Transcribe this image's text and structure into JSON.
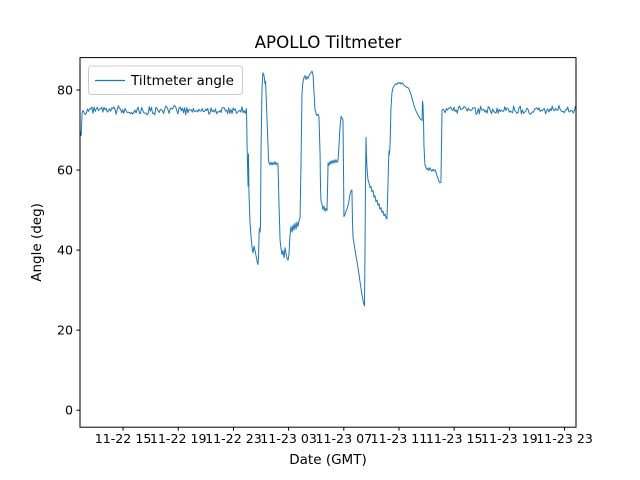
{
  "figure_background": "#ffffff",
  "chart_data": {
    "type": "line",
    "title": "APOLLO Tiltmeter",
    "xlabel": "Date (GMT)",
    "ylabel": "Angle (deg)",
    "line_color": "#1f77b4",
    "axes_edge_color": "#000000",
    "legend": {
      "position": "upper left",
      "edge_color": "#cccccc"
    },
    "x_unit": "hours since 11-22 15:00 GMT",
    "xlim_hours": [
      -3.12,
      32.83
    ],
    "ylim": [
      -4.25,
      88.1
    ],
    "xticks": {
      "hours": [
        0,
        4,
        8,
        12,
        16,
        20,
        24,
        28,
        32
      ],
      "labels": [
        "11-22 15",
        "11-22 19",
        "11-22 23",
        "11-23 03",
        "11-23 07",
        "11-23 11",
        "11-23 15",
        "11-23 19",
        "11-23 23"
      ]
    },
    "yticks": {
      "values": [
        0,
        20,
        40,
        60,
        80
      ],
      "labels": [
        "0",
        "20",
        "40",
        "60",
        "80"
      ]
    },
    "grid": false,
    "series": [
      {
        "name": "Tiltmeter angle",
        "color": "#1f77b4",
        "waypoints": [
          [
            -3.08,
            69.5
          ],
          [
            -3.04,
            68.6
          ],
          [
            -3.01,
            70.5
          ],
          [
            -2.97,
            74.2
          ],
          [
            8.95,
            74.8
          ],
          [
            8.99,
            66.0
          ],
          [
            9.06,
            56.0
          ],
          [
            9.09,
            64.0
          ],
          [
            9.13,
            54.0
          ],
          [
            9.2,
            47.0
          ],
          [
            9.28,
            43.2
          ],
          [
            9.35,
            40.6
          ],
          [
            9.42,
            39.3
          ],
          [
            9.49,
            41.0
          ],
          [
            9.57,
            39.8
          ],
          [
            9.64,
            38.6
          ],
          [
            9.71,
            37.2
          ],
          [
            9.78,
            36.4
          ],
          [
            9.82,
            38.0
          ],
          [
            9.86,
            44.0
          ],
          [
            9.89,
            45.5
          ],
          [
            9.93,
            44.5
          ],
          [
            9.96,
            46.0
          ],
          [
            10.0,
            65.0
          ],
          [
            10.07,
            80.0
          ],
          [
            10.11,
            83.0
          ],
          [
            10.14,
            84.3
          ],
          [
            10.22,
            83.6
          ],
          [
            10.29,
            81.5
          ],
          [
            10.33,
            82.2
          ],
          [
            10.36,
            79.5
          ],
          [
            10.43,
            73.0
          ],
          [
            10.51,
            66.0
          ],
          [
            10.54,
            62.5
          ],
          [
            10.58,
            61.8
          ],
          [
            10.65,
            61.3
          ],
          [
            10.72,
            62.0
          ],
          [
            10.8,
            61.2
          ],
          [
            10.87,
            61.9
          ],
          [
            10.94,
            61.4
          ],
          [
            11.01,
            62.1
          ],
          [
            11.09,
            61.3
          ],
          [
            11.16,
            61.8
          ],
          [
            11.23,
            61.5
          ],
          [
            11.3,
            52.0
          ],
          [
            11.38,
            42.5
          ],
          [
            11.45,
            40.3
          ],
          [
            11.52,
            38.9
          ],
          [
            11.59,
            39.9
          ],
          [
            11.67,
            38.1
          ],
          [
            11.74,
            40.6
          ],
          [
            11.81,
            39.3
          ],
          [
            11.88,
            37.9
          ],
          [
            11.96,
            37.5
          ],
          [
            12.03,
            39.0
          ],
          [
            12.1,
            43.6
          ],
          [
            12.17,
            45.9
          ],
          [
            12.25,
            44.5
          ],
          [
            12.32,
            46.3
          ],
          [
            12.39,
            45.0
          ],
          [
            12.46,
            46.7
          ],
          [
            12.54,
            45.3
          ],
          [
            12.61,
            47.0
          ],
          [
            12.68,
            45.9
          ],
          [
            12.75,
            47.3
          ],
          [
            12.83,
            48.1
          ],
          [
            12.9,
            62.0
          ],
          [
            12.97,
            79.2
          ],
          [
            13.04,
            82.0
          ],
          [
            13.12,
            83.2
          ],
          [
            13.19,
            83.6
          ],
          [
            13.26,
            82.6
          ],
          [
            13.33,
            83.3
          ],
          [
            13.41,
            82.9
          ],
          [
            13.48,
            83.6
          ],
          [
            13.55,
            84.0
          ],
          [
            13.62,
            84.3
          ],
          [
            13.7,
            84.7
          ],
          [
            13.77,
            83.8
          ],
          [
            13.84,
            79.5
          ],
          [
            13.91,
            75.2
          ],
          [
            13.99,
            74.1
          ],
          [
            14.06,
            73.6
          ],
          [
            14.13,
            74.0
          ],
          [
            14.2,
            73.4
          ],
          [
            14.28,
            64.0
          ],
          [
            14.31,
            56.0
          ],
          [
            14.35,
            52.2
          ],
          [
            14.42,
            51.4
          ],
          [
            14.49,
            50.1
          ],
          [
            14.57,
            51.0
          ],
          [
            14.64,
            49.7
          ],
          [
            14.71,
            50.4
          ],
          [
            14.78,
            49.9
          ],
          [
            14.82,
            55.0
          ],
          [
            14.86,
            61.8
          ],
          [
            14.93,
            61.2
          ],
          [
            15.0,
            62.2
          ],
          [
            15.07,
            61.5
          ],
          [
            15.14,
            62.4
          ],
          [
            15.22,
            61.7
          ],
          [
            15.29,
            62.5
          ],
          [
            15.36,
            61.8
          ],
          [
            15.43,
            62.6
          ],
          [
            15.51,
            61.9
          ],
          [
            15.58,
            62.3
          ],
          [
            15.65,
            66.0
          ],
          [
            15.72,
            70.5
          ],
          [
            15.8,
            73.4
          ],
          [
            15.87,
            73.0
          ],
          [
            15.94,
            72.5
          ],
          [
            15.98,
            60.0
          ],
          [
            16.01,
            48.4
          ],
          [
            16.09,
            48.9
          ],
          [
            16.16,
            49.7
          ],
          [
            16.23,
            50.3
          ],
          [
            16.3,
            51.1
          ],
          [
            16.38,
            52.4
          ],
          [
            16.45,
            53.9
          ],
          [
            16.52,
            54.8
          ],
          [
            16.59,
            55.0
          ],
          [
            16.63,
            47.0
          ],
          [
            16.67,
            43.2
          ],
          [
            16.74,
            41.6
          ],
          [
            16.81,
            40.1
          ],
          [
            16.88,
            38.6
          ],
          [
            16.96,
            37.1
          ],
          [
            17.03,
            35.6
          ],
          [
            17.1,
            34.0
          ],
          [
            17.17,
            32.2
          ],
          [
            17.25,
            30.4
          ],
          [
            17.32,
            28.8
          ],
          [
            17.39,
            27.4
          ],
          [
            17.46,
            26.4
          ],
          [
            17.5,
            26.1
          ],
          [
            17.54,
            41.0
          ],
          [
            17.57,
            57.0
          ],
          [
            17.61,
            68.2
          ],
          [
            17.64,
            64.0
          ],
          [
            17.68,
            60.5
          ],
          [
            17.75,
            57.6
          ],
          [
            17.83,
            56.8
          ],
          [
            17.9,
            55.6
          ],
          [
            17.97,
            55.9
          ],
          [
            18.04,
            54.6
          ],
          [
            18.12,
            54.9
          ],
          [
            18.19,
            53.2
          ],
          [
            18.26,
            53.6
          ],
          [
            18.33,
            52.1
          ],
          [
            18.41,
            52.5
          ],
          [
            18.48,
            51.2
          ],
          [
            18.55,
            51.6
          ],
          [
            18.62,
            50.2
          ],
          [
            18.7,
            50.6
          ],
          [
            18.77,
            49.4
          ],
          [
            18.84,
            49.8
          ],
          [
            18.91,
            48.6
          ],
          [
            18.99,
            49.0
          ],
          [
            19.06,
            48.1
          ],
          [
            19.13,
            47.8
          ],
          [
            19.2,
            56.0
          ],
          [
            19.24,
            62.0
          ],
          [
            19.28,
            64.8
          ],
          [
            19.31,
            63.9
          ],
          [
            19.35,
            66.0
          ],
          [
            19.42,
            75.5
          ],
          [
            19.49,
            79.3
          ],
          [
            19.57,
            80.6
          ],
          [
            19.64,
            81.0
          ],
          [
            19.71,
            81.3
          ],
          [
            19.78,
            81.6
          ],
          [
            19.86,
            81.4
          ],
          [
            19.93,
            81.8
          ],
          [
            20.0,
            81.7
          ],
          [
            20.07,
            81.9
          ],
          [
            20.14,
            81.5
          ],
          [
            20.22,
            81.8
          ],
          [
            20.29,
            81.6
          ],
          [
            20.36,
            81.2
          ],
          [
            20.43,
            81.0
          ],
          [
            20.51,
            80.8
          ],
          [
            20.58,
            80.6
          ],
          [
            20.65,
            80.6
          ],
          [
            20.72,
            80.3
          ],
          [
            20.8,
            79.6
          ],
          [
            20.87,
            78.9
          ],
          [
            20.94,
            78.0
          ],
          [
            21.01,
            77.1
          ],
          [
            21.09,
            76.2
          ],
          [
            21.16,
            75.4
          ],
          [
            21.23,
            74.8
          ],
          [
            21.3,
            74.3
          ],
          [
            21.38,
            73.8
          ],
          [
            21.45,
            73.3
          ],
          [
            21.52,
            72.9
          ],
          [
            21.59,
            72.6
          ],
          [
            21.67,
            72.4
          ],
          [
            21.7,
            77.2
          ],
          [
            21.74,
            76.4
          ],
          [
            21.78,
            72.0
          ],
          [
            21.81,
            66.0
          ],
          [
            21.88,
            61.3
          ],
          [
            21.96,
            60.7
          ],
          [
            22.03,
            60.1
          ],
          [
            22.1,
            60.5
          ],
          [
            22.17,
            59.9
          ],
          [
            22.25,
            60.6
          ],
          [
            22.32,
            60.0
          ],
          [
            22.39,
            59.7
          ],
          [
            22.46,
            60.2
          ],
          [
            22.54,
            59.8
          ],
          [
            22.61,
            60.1
          ],
          [
            22.68,
            59.5
          ],
          [
            22.75,
            58.6
          ],
          [
            22.83,
            58.0
          ],
          [
            22.9,
            57.2
          ],
          [
            22.97,
            56.8
          ],
          [
            23.04,
            57.0
          ],
          [
            23.08,
            66.0
          ],
          [
            23.12,
            75.0
          ]
        ],
        "noisy_segments": [
          {
            "from_hour": -2.9,
            "to_hour": 8.91,
            "base": 74.9,
            "amplitude": 1.0,
            "seed": 3.1
          },
          {
            "from_hour": 23.19,
            "to_hour": 32.79,
            "base": 74.9,
            "amplitude": 1.0,
            "seed": 7.7
          }
        ]
      }
    ]
  }
}
